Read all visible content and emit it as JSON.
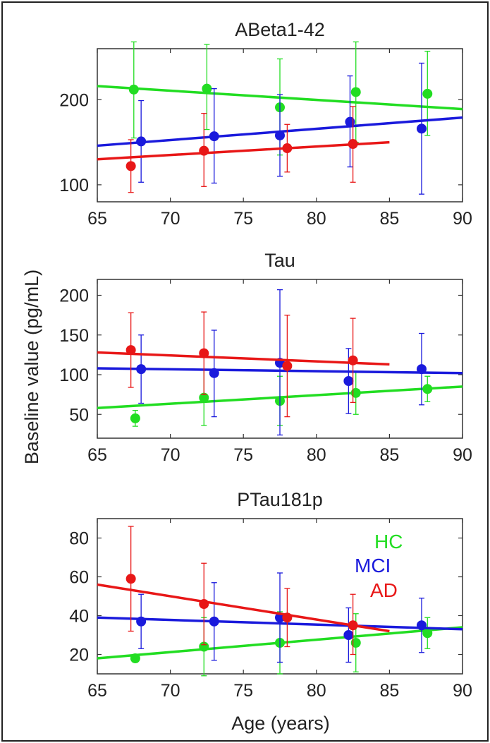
{
  "figure": {
    "ylabel": "Baseline value (pg/mL)",
    "xlabel": "Age (years)"
  },
  "colors": {
    "HC": "#22dd22",
    "MCI": "#1a1adc",
    "AD": "#e81717",
    "axis": "#333333",
    "border": "#222222"
  },
  "legend": {
    "placement": "right, inside bottom panel",
    "entries": [
      {
        "label": "HC",
        "color": "#22dd22"
      },
      {
        "label": "MCI",
        "color": "#1a1adc"
      },
      {
        "label": "AD",
        "color": "#e81717"
      }
    ]
  },
  "chart_data": [
    {
      "type": "scatter",
      "title": "ABeta1-42",
      "xlim": [
        65,
        90
      ],
      "ylim": [
        80,
        260
      ],
      "xticks": [
        "65",
        "70",
        "75",
        "80",
        "85",
        "90"
      ],
      "yticks": [
        "100",
        "200"
      ],
      "grid": false,
      "series": [
        {
          "name": "HC",
          "color": "#22dd22",
          "points": [
            {
              "x": 67.5,
              "y": 212,
              "lo": 155,
              "hi": 268
            },
            {
              "x": 72.5,
              "y": 213,
              "lo": 165,
              "hi": 265
            },
            {
              "x": 77.5,
              "y": 191,
              "lo": 135,
              "hi": 248
            },
            {
              "x": 82.7,
              "y": 209,
              "lo": 150,
              "hi": 268
            },
            {
              "x": 87.6,
              "y": 207,
              "lo": 158,
              "hi": 257
            }
          ],
          "trend": {
            "x": [
              65,
              90
            ],
            "y": [
              216,
              189
            ]
          }
        },
        {
          "name": "MCI",
          "color": "#1a1adc",
          "points": [
            {
              "x": 68.0,
              "y": 151,
              "lo": 103,
              "hi": 199
            },
            {
              "x": 73.0,
              "y": 157,
              "lo": 102,
              "hi": 213
            },
            {
              "x": 77.5,
              "y": 158,
              "lo": 110,
              "hi": 206
            },
            {
              "x": 82.3,
              "y": 174,
              "lo": 121,
              "hi": 228
            },
            {
              "x": 87.2,
              "y": 166,
              "lo": 89,
              "hi": 243
            }
          ],
          "trend": {
            "x": [
              65,
              90
            ],
            "y": [
              146,
              179
            ]
          }
        },
        {
          "name": "AD",
          "color": "#e81717",
          "points": [
            {
              "x": 67.3,
              "y": 122,
              "lo": 91,
              "hi": 153
            },
            {
              "x": 72.3,
              "y": 140,
              "lo": 98,
              "hi": 184
            },
            {
              "x": 78.0,
              "y": 143,
              "lo": 115,
              "hi": 171
            },
            {
              "x": 82.5,
              "y": 148,
              "lo": 103,
              "hi": 192
            }
          ],
          "trend": {
            "x": [
              65,
              85
            ],
            "y": [
              130,
              150
            ]
          }
        }
      ]
    },
    {
      "type": "scatter",
      "title": "Tau",
      "xlim": [
        65,
        90
      ],
      "ylim": [
        20,
        220
      ],
      "xticks": [
        "65",
        "70",
        "75",
        "80",
        "85",
        "90"
      ],
      "yticks": [
        "50",
        "100",
        "150",
        "200"
      ],
      "grid": false,
      "series": [
        {
          "name": "HC",
          "color": "#22dd22",
          "points": [
            {
              "x": 67.6,
              "y": 45,
              "lo": 35,
              "hi": 55
            },
            {
              "x": 72.3,
              "y": 71,
              "lo": 36,
              "hi": 106
            },
            {
              "x": 77.5,
              "y": 67,
              "lo": 36,
              "hi": 98
            },
            {
              "x": 82.7,
              "y": 77,
              "lo": 50,
              "hi": 104
            },
            {
              "x": 87.6,
              "y": 82,
              "lo": 66,
              "hi": 98
            }
          ],
          "trend": {
            "x": [
              65,
              90
            ],
            "y": [
              58,
              85
            ]
          }
        },
        {
          "name": "MCI",
          "color": "#1a1adc",
          "points": [
            {
              "x": 68.0,
              "y": 107,
              "lo": 64,
              "hi": 150
            },
            {
              "x": 73.0,
              "y": 102,
              "lo": 47,
              "hi": 156
            },
            {
              "x": 77.5,
              "y": 115,
              "lo": 24,
              "hi": 207
            },
            {
              "x": 82.2,
              "y": 92,
              "lo": 51,
              "hi": 133
            },
            {
              "x": 87.2,
              "y": 107,
              "lo": 62,
              "hi": 152
            }
          ],
          "trend": {
            "x": [
              65,
              90
            ],
            "y": [
              108,
              102
            ]
          }
        },
        {
          "name": "AD",
          "color": "#e81717",
          "points": [
            {
              "x": 67.3,
              "y": 131,
              "lo": 84,
              "hi": 178
            },
            {
              "x": 72.3,
              "y": 127,
              "lo": 75,
              "hi": 179
            },
            {
              "x": 78.0,
              "y": 111,
              "lo": 47,
              "hi": 175
            },
            {
              "x": 82.5,
              "y": 118,
              "lo": 65,
              "hi": 171
            }
          ],
          "trend": {
            "x": [
              65,
              85
            ],
            "y": [
              128,
              113
            ]
          }
        }
      ]
    },
    {
      "type": "scatter",
      "title": "PTau181p",
      "xlim": [
        65,
        90
      ],
      "ylim": [
        10,
        90
      ],
      "xticks": [
        "65",
        "70",
        "75",
        "80",
        "85",
        "90"
      ],
      "yticks": [
        "20",
        "40",
        "60",
        "80"
      ],
      "grid": false,
      "series": [
        {
          "name": "HC",
          "color": "#22dd22",
          "points": [
            {
              "x": 67.6,
              "y": 18,
              "lo": 16,
              "hi": 20
            },
            {
              "x": 72.3,
              "y": 24,
              "lo": 9,
              "hi": 39
            },
            {
              "x": 77.5,
              "y": 26,
              "lo": 10,
              "hi": 42
            },
            {
              "x": 82.7,
              "y": 26,
              "lo": 11,
              "hi": 41
            },
            {
              "x": 87.6,
              "y": 31,
              "lo": 23,
              "hi": 39
            }
          ],
          "trend": {
            "x": [
              65,
              90
            ],
            "y": [
              18,
              34
            ]
          }
        },
        {
          "name": "MCI",
          "color": "#1a1adc",
          "points": [
            {
              "x": 68.0,
              "y": 37,
              "lo": 23,
              "hi": 51
            },
            {
              "x": 73.0,
              "y": 37,
              "lo": 17,
              "hi": 57
            },
            {
              "x": 77.5,
              "y": 39,
              "lo": 16,
              "hi": 62
            },
            {
              "x": 82.2,
              "y": 30,
              "lo": 16,
              "hi": 44
            },
            {
              "x": 87.2,
              "y": 35,
              "lo": 21,
              "hi": 49
            }
          ],
          "trend": {
            "x": [
              65,
              90
            ],
            "y": [
              39,
              33
            ]
          }
        },
        {
          "name": "AD",
          "color": "#e81717",
          "points": [
            {
              "x": 67.3,
              "y": 59,
              "lo": 32,
              "hi": 86
            },
            {
              "x": 72.3,
              "y": 46,
              "lo": 25,
              "hi": 67
            },
            {
              "x": 78.0,
              "y": 39,
              "lo": 24,
              "hi": 54
            },
            {
              "x": 82.5,
              "y": 35,
              "lo": 20,
              "hi": 51
            }
          ],
          "trend": {
            "x": [
              65,
              85
            ],
            "y": [
              56,
              32
            ]
          }
        }
      ]
    }
  ]
}
